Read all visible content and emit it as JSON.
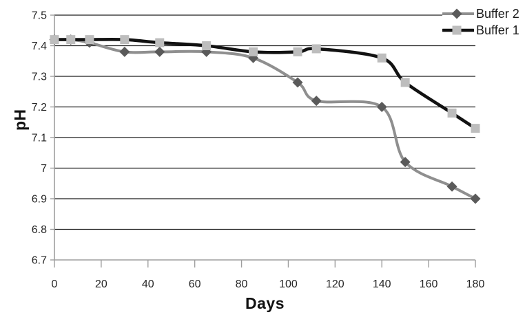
{
  "chart_data": {
    "type": "line",
    "title": "",
    "xlabel": "Days",
    "ylabel": "pH",
    "x": [
      0,
      7,
      15,
      30,
      45,
      65,
      85,
      104,
      112,
      140,
      150,
      170,
      180
    ],
    "series": [
      {
        "name": "Buffer 2",
        "values": [
          7.42,
          7.42,
          7.41,
          7.38,
          7.38,
          7.38,
          7.36,
          7.28,
          7.22,
          7.2,
          7.02,
          6.94,
          6.9
        ],
        "line_color": "#8f8f8f",
        "marker": "diamond",
        "marker_color": "#5a5a5a"
      },
      {
        "name": "Buffer 1",
        "values": [
          7.42,
          7.42,
          7.42,
          7.42,
          7.41,
          7.4,
          7.38,
          7.38,
          7.39,
          7.36,
          7.28,
          7.18,
          7.13
        ],
        "line_color": "#121212",
        "marker": "square",
        "marker_color": "#bdbdbd"
      }
    ],
    "xlim": [
      0,
      180
    ],
    "ylim": [
      6.7,
      7.5
    ],
    "x_ticks": [
      0,
      20,
      40,
      60,
      80,
      100,
      120,
      140,
      160,
      180
    ],
    "y_ticks": [
      7.5,
      7.4,
      7.3,
      7.2,
      7.1,
      7,
      6.9,
      6.8,
      6.7
    ],
    "grid": "horizontal-only",
    "smoothed_lines": true,
    "legend_position": "top-right",
    "colors": {
      "background": "#ffffff",
      "gridline": "#1f1f1f",
      "axis_line": "#9e9e9e",
      "tick_text": "#262626"
    }
  }
}
